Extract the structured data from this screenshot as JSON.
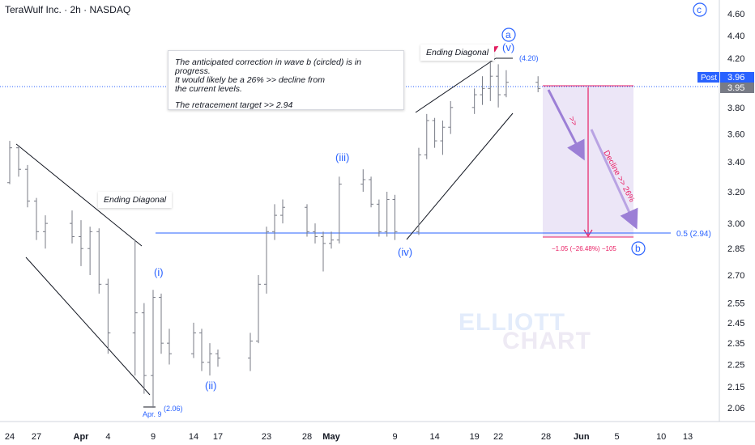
{
  "header": {
    "title": "TeraWulf Inc. · 2h · NASDAQ"
  },
  "annotations": {
    "callout_line1": "The anticipated correction in wave b (circled) is in progress.",
    "callout_line2": "It would likely be a 26% >> decline from",
    "callout_line3": "the current levels.",
    "callout_line4": "The retracement target >> 2.94",
    "ending_diagonal_left": "Ending Diagonal",
    "ending_diagonal_right": "Ending Diagonal",
    "wave_i": "(i)",
    "wave_ii": "(ii)",
    "wave_iii": "(iii)",
    "wave_iv": "(iv)",
    "wave_v": "(v)",
    "circled_a": "a",
    "circled_b": "b",
    "circled_c": "c",
    "high_label": "(4.20)",
    "low_label": "(2.06)",
    "low_date": "Apr. 9",
    "arrow_marker": ">>",
    "decline_text": "Decline >> 26%",
    "measure_text": "−1.05 (−26.48%) −105",
    "fib_label": "0.5 (2.94)",
    "post_label": "Post",
    "post_price": "3.96",
    "last_price": "3.95"
  },
  "watermark": {
    "line1": "ELLIOTT",
    "line2": "CHART"
  },
  "colors": {
    "blue": "#2962ff",
    "pink": "#e91e63",
    "purple": "#9c7fd6",
    "shade": "#ece6f7",
    "candle": "#787b86"
  },
  "chart_data": {
    "type": "ohlc",
    "title": "TeraWulf Inc. · 2h · NASDAQ",
    "y_scale": "log",
    "y_ticks": [
      4.6,
      4.4,
      4.2,
      3.95,
      3.8,
      3.6,
      3.4,
      3.2,
      3.0,
      2.85,
      2.7,
      2.55,
      2.45,
      2.35,
      2.25,
      2.15,
      2.06
    ],
    "y_tick_labels": [
      "4.60",
      "4.40",
      "4.20",
      "3.95",
      "3.80",
      "3.60",
      "3.40",
      "3.20",
      "3.00",
      "2.85",
      "2.70",
      "2.55",
      "2.45",
      "2.35",
      "2.25",
      "2.15",
      "2.06"
    ],
    "x_tick_labels": [
      "24",
      "27",
      "Apr",
      "4",
      "9",
      "14",
      "17",
      "23",
      "28",
      "May",
      "9",
      "14",
      "19",
      "22",
      "28",
      "Jun",
      "5",
      "10",
      "13"
    ],
    "x_tick_dates": [
      "Mar 24",
      "Mar 27",
      "Apr 1",
      "Apr 4",
      "Apr 9",
      "Apr 14",
      "Apr 17",
      "Apr 23",
      "Apr 28",
      "May 1",
      "May 9",
      "May 14",
      "May 19",
      "May 22",
      "May 28",
      "Jun 1",
      "Jun 5",
      "Jun 10",
      "Jun 13"
    ],
    "levels": {
      "fib_0_5": 2.94,
      "current": 3.95,
      "post": 3.96,
      "high": 4.2,
      "low": 2.06
    },
    "measurement": {
      "change": -1.05,
      "percent": -26.48,
      "ticks": -105
    },
    "bars": [
      [
        "Mar 21",
        3.28,
        3.33,
        3.2,
        3.26
      ],
      [
        "Mar 24",
        3.26,
        3.55,
        3.25,
        3.5
      ],
      [
        "Mar 25",
        3.5,
        3.52,
        3.3,
        3.35
      ],
      [
        "Mar 26",
        3.35,
        3.38,
        3.1,
        3.14
      ],
      [
        "Mar 27",
        3.14,
        3.16,
        2.9,
        2.95
      ],
      [
        "Mar 28",
        2.95,
        3.05,
        2.85,
        3.0
      ],
      [
        "Mar 31",
        3.0,
        3.08,
        2.88,
        2.92
      ],
      [
        "Apr 1",
        2.92,
        3.02,
        2.75,
        2.85
      ],
      [
        "Apr 2",
        2.85,
        2.98,
        2.7,
        2.95
      ],
      [
        "Apr 3",
        2.95,
        2.97,
        2.6,
        2.65
      ],
      [
        "Apr 4",
        2.65,
        2.68,
        2.3,
        2.4
      ],
      [
        "Apr 7",
        2.4,
        2.9,
        2.2,
        2.5
      ],
      [
        "Apr 8",
        2.5,
        2.55,
        2.12,
        2.2
      ],
      [
        "Apr 9",
        2.2,
        2.62,
        2.06,
        2.58
      ],
      [
        "Apr 10",
        2.58,
        2.6,
        2.3,
        2.35
      ],
      [
        "Apr 11",
        2.35,
        2.42,
        2.25,
        2.3
      ],
      [
        "Apr 14",
        2.3,
        2.45,
        2.28,
        2.4
      ],
      [
        "Apr 15",
        2.4,
        2.42,
        2.22,
        2.26
      ],
      [
        "Apr 16",
        2.26,
        2.35,
        2.2,
        2.3
      ],
      [
        "Apr 17",
        2.3,
        2.32,
        2.24,
        2.28
      ],
      [
        "Apr 21",
        2.28,
        2.4,
        2.22,
        2.36
      ],
      [
        "Apr 22",
        2.36,
        2.7,
        2.35,
        2.65
      ],
      [
        "Apr 23",
        2.65,
        2.98,
        2.6,
        2.95
      ],
      [
        "Apr 24",
        2.95,
        3.12,
        2.9,
        3.05
      ],
      [
        "Apr 25",
        3.05,
        3.15,
        3.0,
        3.1
      ],
      [
        "Apr 28",
        3.1,
        3.12,
        2.92,
        2.95
      ],
      [
        "Apr 29",
        2.95,
        3.0,
        2.88,
        2.92
      ],
      [
        "Apr 30",
        2.92,
        2.95,
        2.72,
        2.88
      ],
      [
        "May 1",
        2.88,
        2.95,
        2.85,
        2.9
      ],
      [
        "May 2",
        2.9,
        3.3,
        2.88,
        3.25
      ],
      [
        "May 5",
        3.25,
        3.35,
        3.2,
        3.28
      ],
      [
        "May 6",
        3.28,
        3.3,
        3.1,
        3.12
      ],
      [
        "May 7",
        3.12,
        3.15,
        2.92,
        2.95
      ],
      [
        "May 8",
        2.95,
        3.2,
        2.92,
        3.15
      ],
      [
        "May 9",
        3.15,
        3.18,
        2.9,
        2.95
      ],
      [
        "May 12",
        2.95,
        3.5,
        2.93,
        3.45
      ],
      [
        "May 13",
        3.45,
        3.75,
        3.42,
        3.7
      ],
      [
        "May 14",
        3.7,
        3.72,
        3.5,
        3.55
      ],
      [
        "May 15",
        3.55,
        3.7,
        3.45,
        3.65
      ],
      [
        "May 16",
        3.65,
        3.85,
        3.6,
        3.8
      ],
      [
        "May 19",
        3.8,
        3.95,
        3.75,
        3.9
      ],
      [
        "May 20",
        3.9,
        4.05,
        3.82,
        3.95
      ],
      [
        "May 21",
        3.95,
        4.2,
        3.85,
        4.05
      ],
      [
        "May 22",
        4.05,
        4.15,
        3.8,
        3.9
      ],
      [
        "May 23",
        3.9,
        4.1,
        3.88,
        4.0
      ],
      [
        "May 27",
        4.0,
        4.05,
        3.92,
        3.95
      ]
    ]
  }
}
